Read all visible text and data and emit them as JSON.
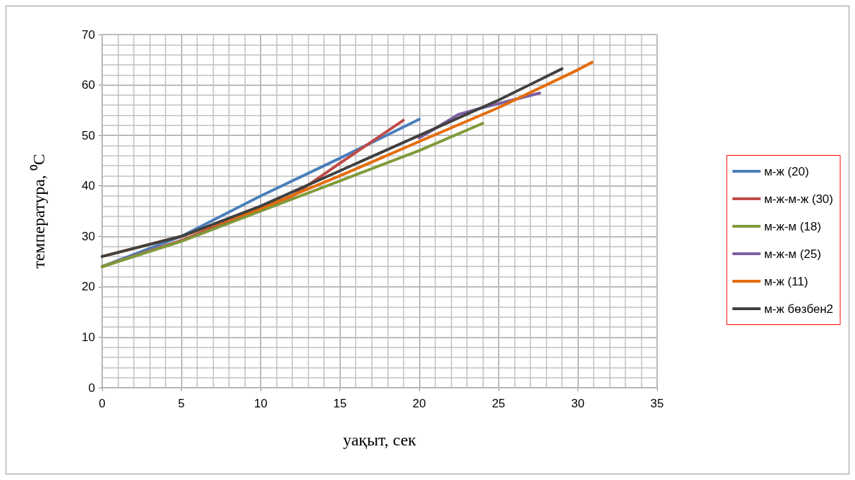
{
  "chart_data": {
    "type": "line",
    "xlabel": "уақыт, сек",
    "ylabel": "температура, ⁰C",
    "xlim": [
      0,
      35
    ],
    "xticks": [
      0,
      5,
      10,
      15,
      20,
      25,
      30,
      35
    ],
    "ylim": [
      0,
      70
    ],
    "yticks": [
      0,
      10,
      20,
      30,
      40,
      50,
      60,
      70
    ],
    "grid": true,
    "legend": "right",
    "marker": "none",
    "line_style": "solid",
    "series": [
      {
        "name": "м-ж (20)",
        "color": "#4a7ebb",
        "x": [
          0,
          5,
          10,
          15,
          20
        ],
        "values": [
          24,
          30,
          38,
          45.5,
          53.2
        ]
      },
      {
        "name": "м-ж-м-ж (30)",
        "color": "#be4b48",
        "x": [
          0,
          5,
          10,
          12,
          15,
          19
        ],
        "values": [
          24,
          29.2,
          35.5,
          38,
          44.5,
          53
        ]
      },
      {
        "name": "м-ж-м (18)",
        "color": "#7f9a3a",
        "x": [
          0,
          5,
          10,
          15,
          20,
          24
        ],
        "values": [
          24,
          29,
          35,
          41,
          47,
          52.4
        ]
      },
      {
        "name": "м-ж-м (25)",
        "color": "#7d60a0",
        "x": [
          20,
          22.5,
          24,
          27.6
        ],
        "values": [
          49.5,
          54.2,
          55.5,
          58.4
        ]
      },
      {
        "name": "м-ж (11)",
        "color": "#e46c0a",
        "x": [
          0,
          5,
          10,
          15,
          20,
          25,
          30,
          30.9
        ],
        "values": [
          26,
          30,
          35.5,
          42,
          48.8,
          55.5,
          63,
          64.5
        ]
      },
      {
        "name": "м-ж бөзбен2",
        "color": "#404040",
        "x": [
          0,
          5,
          10,
          15,
          20,
          25,
          29
        ],
        "values": [
          26,
          30,
          36,
          43,
          50,
          57,
          63.2
        ]
      }
    ]
  }
}
